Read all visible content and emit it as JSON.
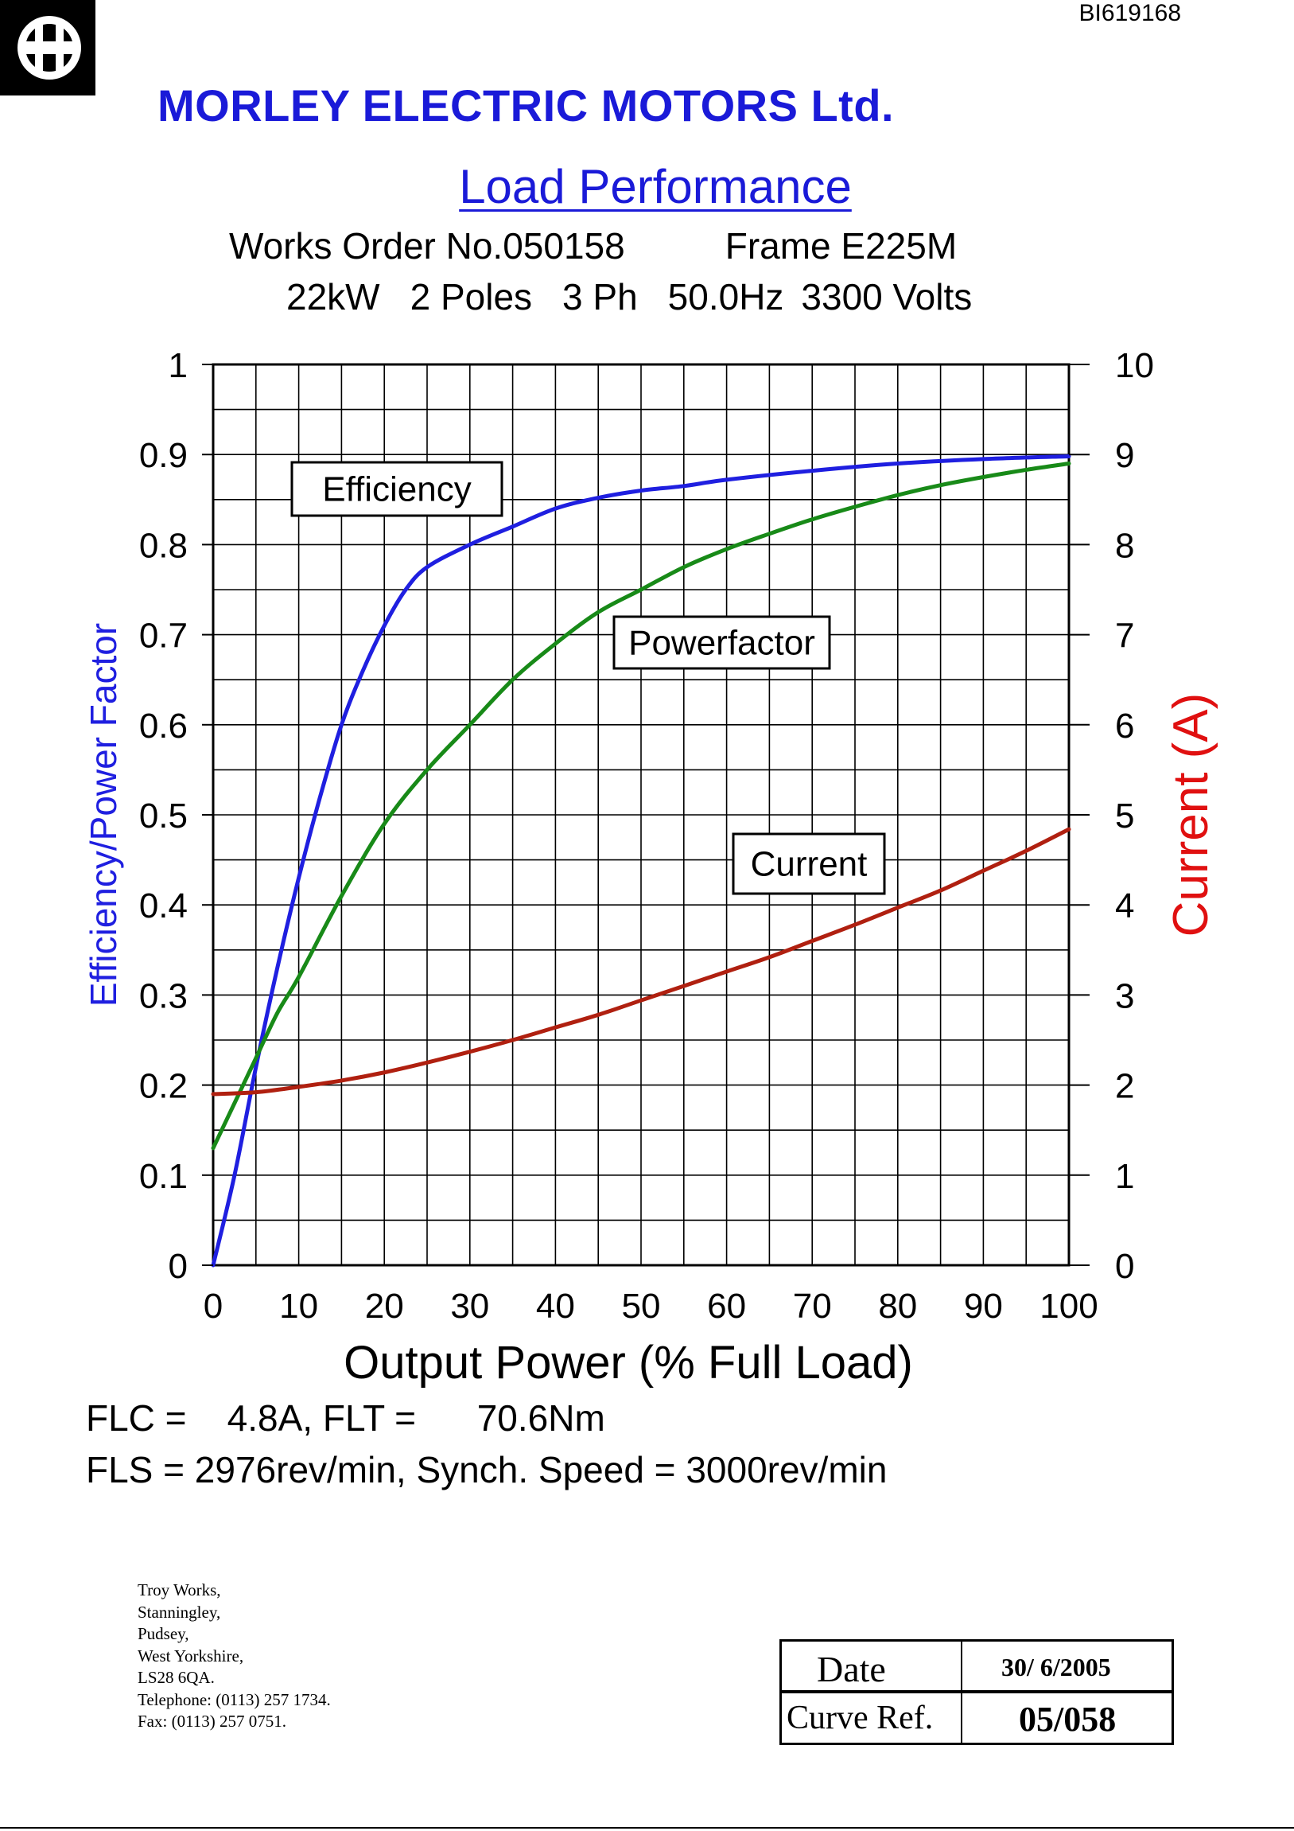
{
  "document_id": "BI619168",
  "header": {
    "company": "MORLEY ELECTRIC MOTORS Ltd.",
    "title": "Load Performance",
    "works_order": "Works Order No.050158",
    "frame": "Frame E225M",
    "specs": [
      "22kW",
      "2 Poles",
      "3 Ph",
      "50.0Hz",
      "3300 Volts"
    ]
  },
  "colors": {
    "efficiency": "#1f1fe0",
    "powerfactor": "#188a18",
    "current": "#b02010",
    "heading": "#1a1ad8",
    "right_axis_label": "#e01010"
  },
  "chart_data": {
    "type": "line",
    "xlabel": "Output Power (% Full Load)",
    "ylabel_left": "Efficiency/Power Factor",
    "ylabel_right": "Current (A)",
    "xlim": [
      0,
      100
    ],
    "ylim_left": [
      0,
      1
    ],
    "ylim_right": [
      0,
      10
    ],
    "x_ticks": [
      "0",
      "10",
      "20",
      "30",
      "40",
      "50",
      "60",
      "70",
      "80",
      "90",
      "100"
    ],
    "y_ticks_left": [
      "0",
      "0.1",
      "0.2",
      "0.3",
      "0.4",
      "0.5",
      "0.6",
      "0.7",
      "0.8",
      "0.9",
      "1"
    ],
    "y_ticks_right": [
      "0",
      "1",
      "2",
      "3",
      "4",
      "5",
      "6",
      "7",
      "8",
      "9",
      "10"
    ],
    "grid": true,
    "series": [
      {
        "name": "Efficiency",
        "axis": "left",
        "x": [
          0,
          2.5,
          5,
          7.5,
          10,
          12.5,
          15,
          17.5,
          20,
          22.5,
          25,
          30,
          35,
          40,
          45,
          50,
          55,
          60,
          70,
          80,
          90,
          100
        ],
        "values": [
          0,
          0.1,
          0.22,
          0.33,
          0.43,
          0.52,
          0.6,
          0.66,
          0.71,
          0.75,
          0.775,
          0.8,
          0.82,
          0.84,
          0.852,
          0.86,
          0.865,
          0.872,
          0.882,
          0.89,
          0.895,
          0.898
        ]
      },
      {
        "name": "Powerfactor",
        "axis": "left",
        "x": [
          0,
          2.5,
          5,
          7.5,
          10,
          15,
          20,
          25,
          30,
          35,
          40,
          45,
          50,
          55,
          60,
          65,
          70,
          75,
          80,
          85,
          90,
          95,
          100
        ],
        "values": [
          0.13,
          0.18,
          0.23,
          0.28,
          0.32,
          0.41,
          0.49,
          0.55,
          0.6,
          0.65,
          0.69,
          0.725,
          0.75,
          0.775,
          0.795,
          0.812,
          0.828,
          0.842,
          0.855,
          0.866,
          0.875,
          0.883,
          0.89
        ]
      },
      {
        "name": "Current",
        "axis": "right",
        "x": [
          0,
          5,
          10,
          15,
          20,
          25,
          30,
          35,
          40,
          45,
          50,
          55,
          60,
          65,
          70,
          75,
          80,
          85,
          90,
          95,
          100
        ],
        "values": [
          1.9,
          1.92,
          1.98,
          2.05,
          2.14,
          2.25,
          2.37,
          2.5,
          2.64,
          2.78,
          2.94,
          3.1,
          3.26,
          3.42,
          3.6,
          3.78,
          3.97,
          4.16,
          4.38,
          4.6,
          4.84
        ]
      }
    ],
    "annotations": [
      "Efficiency",
      "Powerfactor",
      "Current"
    ]
  },
  "footer": {
    "line1": "FLC =    4.8A, FLT =      70.6Nm",
    "line2": "FLS = 2976rev/min, Synch. Speed = 3000rev/min"
  },
  "address": [
    "Troy Works,",
    "Stanningley,",
    "Pudsey,",
    "West Yorkshire,",
    "LS28 6QA.",
    "Telephone: (0113) 257 1734.",
    "Fax: (0113) 257 0751."
  ],
  "reference_box": {
    "date_label": "Date",
    "date_value": "30/ 6/2005",
    "curve_ref_label": "Curve Ref.",
    "curve_ref_value": "05/058"
  }
}
